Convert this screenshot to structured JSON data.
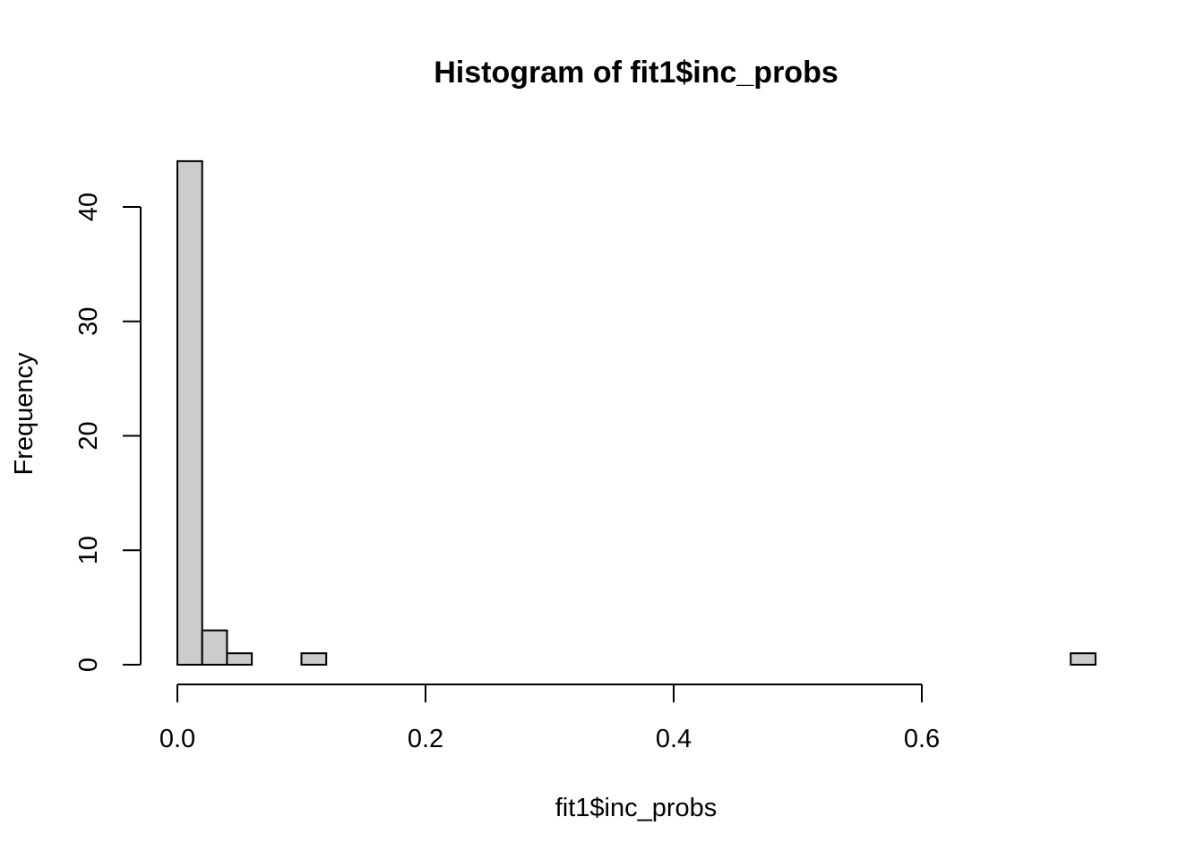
{
  "chart_data": {
    "type": "bar",
    "title": "Histogram of fit1$inc_probs",
    "xlabel": "fit1$inc_probs",
    "ylabel": "Frequency",
    "bar_color": "#cccccc",
    "border_color": "#000000",
    "bin_width": 0.02,
    "bin_start": 0.0,
    "bin_end": 0.74,
    "counts": [
      44,
      3,
      1,
      0,
      0,
      1,
      0,
      0,
      0,
      0,
      0,
      0,
      0,
      0,
      0,
      0,
      0,
      0,
      0,
      0,
      0,
      0,
      0,
      0,
      0,
      0,
      0,
      0,
      0,
      0,
      0,
      0,
      0,
      0,
      0,
      0,
      1
    ],
    "xlim": [
      0.0,
      0.74
    ],
    "ylim": [
      0,
      44
    ],
    "x_ticks": [
      0.0,
      0.2,
      0.4,
      0.6
    ],
    "x_tick_labels": [
      "0.0",
      "0.2",
      "0.4",
      "0.6"
    ],
    "y_ticks": [
      0,
      10,
      20,
      30,
      40
    ],
    "y_tick_labels": [
      "0",
      "10",
      "20",
      "30",
      "40"
    ],
    "grid": false
  }
}
